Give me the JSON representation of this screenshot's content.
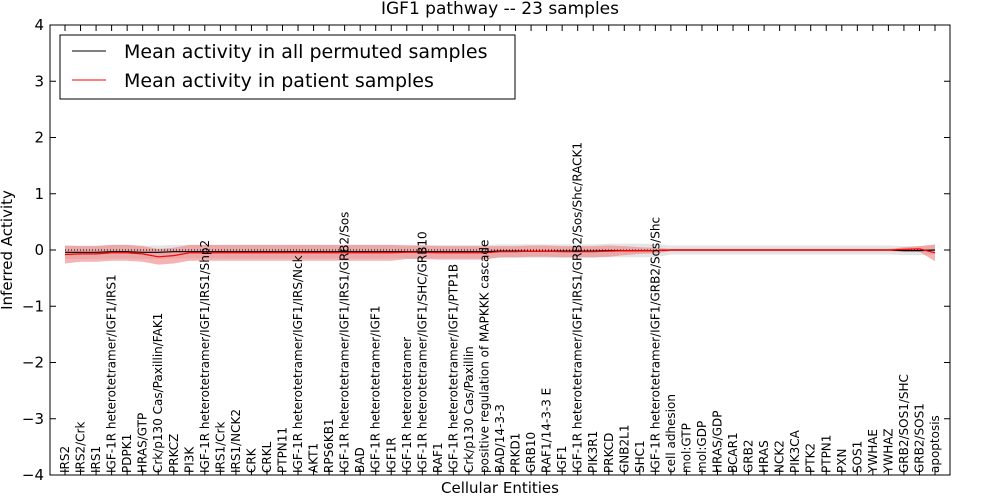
{
  "chart_data": {
    "type": "line",
    "title": "IGF1 pathway -- 23 samples",
    "xlabel": "Cellular Entities",
    "ylabel": "Inferred Activity",
    "ylim": [
      -4,
      4
    ],
    "yticks": [
      -4,
      -3,
      -2,
      -1,
      0,
      1,
      2,
      3,
      4
    ],
    "ytick_labels": [
      "−4",
      "−3",
      "−2",
      "−1",
      "0",
      "1",
      "2",
      "3",
      "4"
    ],
    "legend_position": "top-left",
    "categories": [
      "IRS2",
      "IRS2/Crk",
      "IRS1",
      "IGF-1R heterotetramer/IGF1/IRS1",
      "PDPK1",
      "HRAS/GTP",
      "Crk/p130 Cas/Paxillin/FAK1",
      "PRKCZ",
      "PI3K",
      "IGF-1R heterotetramer/IGF1/IRS1/Shp2",
      "IRS1/Crk",
      "IRS1/NCK2",
      "CRK",
      "CRKL",
      "PTPN11",
      "IGF-1R heterotetramer/IGF1/IRS/Nck",
      "AKT1",
      "RPS6KB1",
      "IGF-1R heterotetramer/IGF1/IRS1/GRB2/Sos",
      "BAD",
      "IGF-1R heterotetramer/IGF1",
      "IGF1R",
      "IGF-1R heterotetramer",
      "IGF-1R heterotetramer/IGF1/SHC/GRB10",
      "RAF1",
      "IGF-1R heterotetramer/IGF1/PTP1B",
      "Crk/p130 Cas/Paxillin",
      "positive regulation of MAPKKK cascade",
      "BAD/14-3-3",
      "PRKD1",
      "GRB10",
      "RAF1/14-3-3 E",
      "IGF1",
      "IGF-1R heterotetramer/IGF1/IRS1/GRB2/Sos/Shc/RACK1",
      "PIK3R1",
      "PRKCD",
      "GNB2L1",
      "SHC1",
      "IGF-1R heterotetramer/IGF1/GRB2/Sos/Shc",
      "cell adhesion",
      "mol:GTP",
      "mol:GDP",
      "HRAS/GDP",
      "BCAR1",
      "GRB2",
      "HRAS",
      "NCK2",
      "PIK3CA",
      "PTK2",
      "PTPN1",
      "PXN",
      "SOS1",
      "YWHAE",
      "YWHAZ",
      "GRB2/SOS1/SHC",
      "GRB2/SOS1",
      "apoptosis"
    ],
    "series": [
      {
        "name": "Mean activity in all permuted samples",
        "color": "#000000",
        "band_color": "#bbbbbb",
        "values": [
          -0.04,
          -0.04,
          -0.04,
          -0.03,
          -0.03,
          -0.04,
          -0.04,
          -0.03,
          -0.03,
          -0.03,
          -0.03,
          -0.03,
          -0.03,
          -0.03,
          -0.03,
          -0.03,
          -0.03,
          -0.03,
          -0.03,
          -0.03,
          -0.03,
          -0.03,
          -0.03,
          -0.03,
          -0.03,
          -0.03,
          -0.03,
          -0.03,
          -0.02,
          -0.02,
          -0.02,
          -0.02,
          -0.02,
          -0.02,
          -0.02,
          -0.01,
          -0.01,
          -0.01,
          -0.01,
          0,
          0,
          0,
          0,
          0,
          0,
          0,
          0,
          0,
          0,
          0,
          0,
          0,
          0,
          0,
          -0.01,
          -0.01,
          0
        ],
        "spread": [
          0.12,
          0.12,
          0.12,
          0.12,
          0.12,
          0.12,
          0.12,
          0.12,
          0.12,
          0.12,
          0.12,
          0.12,
          0.12,
          0.12,
          0.12,
          0.12,
          0.12,
          0.12,
          0.12,
          0.12,
          0.12,
          0.12,
          0.12,
          0.12,
          0.12,
          0.12,
          0.12,
          0.12,
          0.12,
          0.12,
          0.12,
          0.12,
          0.12,
          0.12,
          0.12,
          0.12,
          0.12,
          0.12,
          0.12,
          0.08,
          0.08,
          0.08,
          0.08,
          0.08,
          0.08,
          0.08,
          0.08,
          0.08,
          0.08,
          0.08,
          0.08,
          0.08,
          0.08,
          0.08,
          0.08,
          0.08,
          0.08
        ]
      },
      {
        "name": "Mean activity in patient samples",
        "color": "#ff0000",
        "band_color": "#f08080",
        "values": [
          -0.08,
          -0.07,
          -0.07,
          -0.05,
          -0.05,
          -0.07,
          -0.12,
          -0.1,
          -0.05,
          -0.05,
          -0.05,
          -0.05,
          -0.05,
          -0.05,
          -0.05,
          -0.05,
          -0.05,
          -0.05,
          -0.05,
          -0.05,
          -0.05,
          -0.05,
          -0.04,
          -0.04,
          -0.05,
          -0.05,
          -0.05,
          -0.05,
          -0.03,
          -0.03,
          -0.02,
          -0.02,
          -0.03,
          -0.03,
          -0.03,
          -0.02,
          -0.01,
          -0.01,
          -0.01,
          0,
          0,
          0,
          0,
          0,
          0,
          0,
          0,
          0,
          0,
          0,
          0,
          0,
          0,
          0,
          0.01,
          0.02,
          -0.05
        ],
        "spread": [
          0.16,
          0.14,
          0.14,
          0.14,
          0.14,
          0.14,
          0.14,
          0.14,
          0.14,
          0.14,
          0.14,
          0.14,
          0.14,
          0.14,
          0.14,
          0.14,
          0.14,
          0.14,
          0.14,
          0.14,
          0.14,
          0.14,
          0.12,
          0.12,
          0.12,
          0.12,
          0.12,
          0.12,
          0.1,
          0.1,
          0.1,
          0.1,
          0.1,
          0.1,
          0.1,
          0.1,
          0.08,
          0.06,
          0.05,
          0.02,
          0.02,
          0.02,
          0.02,
          0.02,
          0.02,
          0.02,
          0.02,
          0.02,
          0.02,
          0.02,
          0.02,
          0.02,
          0.02,
          0.02,
          0.04,
          0.05,
          0.15
        ]
      }
    ],
    "baseline": {
      "value": 0,
      "style": "dotted"
    }
  }
}
